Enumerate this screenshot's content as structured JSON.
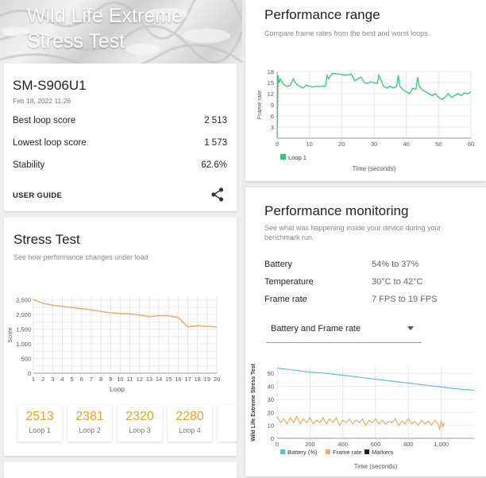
{
  "hero": {
    "title_line1": "Wild Life Extreme",
    "title_line2": "Stress Test"
  },
  "device": {
    "name": "SM-S906U1",
    "date": "Feb 18, 2022 11:26",
    "best_label": "Best loop score",
    "best_value": "2 513",
    "lowest_label": "Lowest loop score",
    "lowest_value": "1 573",
    "stability_label": "Stability",
    "stability_value": "62.6%",
    "user_guide": "USER GUIDE",
    "share_icon": "share-icon"
  },
  "stress": {
    "title": "Stress Test",
    "subtitle": "See how performance changes under load",
    "tiles": [
      {
        "value": "2513",
        "label": "Loop 1"
      },
      {
        "value": "2381",
        "label": "Loop 2"
      },
      {
        "value": "2320",
        "label": "Loop 3"
      },
      {
        "value": "2280",
        "label": "Loop 4"
      },
      {
        "value": "2",
        "label": "L"
      }
    ],
    "accent": "#f0a020"
  },
  "range": {
    "title": "Performance range",
    "subtitle": "Compare frame rates from the best and worst loops.",
    "accent": "#2ecc71"
  },
  "monitor": {
    "title": "Performance monitoring",
    "subtitle_line1": "See what was happening inside your device during your",
    "subtitle_line2": "benchmark run.",
    "battery_label": "Battery",
    "battery_value": "54% to 37%",
    "temp_label": "Temperature",
    "temp_value": "30°C to 42°C",
    "fps_label": "Frame rate",
    "fps_value": "7 FPS to 19 FPS",
    "dropdown_value": "Battery and Frame rate"
  },
  "chart_data": [
    {
      "type": "line",
      "title": "",
      "xlabel": "Loop",
      "ylabel": "Score",
      "x": [
        1,
        2,
        3,
        4,
        5,
        6,
        7,
        8,
        9,
        10,
        11,
        12,
        13,
        14,
        15,
        16,
        17,
        18,
        19,
        20
      ],
      "series": [
        {
          "name": "",
          "color": "#f5a962",
          "values": [
            2513,
            2381,
            2320,
            2280,
            2240,
            2200,
            2160,
            2110,
            2060,
            2040,
            2020,
            1990,
            1930,
            1960,
            1960,
            1900,
            1580,
            1620,
            1600,
            1573
          ]
        }
      ],
      "xlim": [
        1,
        20
      ],
      "ylim": [
        0,
        2600
      ],
      "yticks": [
        0,
        250,
        500,
        750,
        1000,
        1250,
        1500,
        1750,
        2000,
        2250,
        2500
      ],
      "yticklabels": [
        "0",
        "",
        "",
        "",
        "1,000",
        "",
        "1,500",
        "",
        "2,000",
        "",
        "2,500"
      ],
      "yticklabels_shown": [
        "0",
        "250",
        "500",
        "750",
        "1,000",
        "1,250",
        "1,500",
        "1,750",
        "2,000",
        "2,250",
        "2,500"
      ],
      "grid": true
    },
    {
      "type": "line",
      "title": "",
      "xlabel": "Time (seconds)",
      "ylabel": "Frame rate",
      "xlim": [
        0,
        60
      ],
      "ylim": [
        0,
        18
      ],
      "xticks": [
        0,
        10,
        20,
        30,
        40,
        50,
        60
      ],
      "yticks": [
        0,
        3,
        6,
        9,
        12,
        15,
        18
      ],
      "series": [
        {
          "name": "Loop 1",
          "color": "#2ecc71",
          "x": [
            0,
            0.3,
            0.6,
            1,
            2,
            3,
            4,
            5,
            6,
            7,
            8,
            9,
            10,
            11,
            12,
            13,
            14,
            15,
            15.5,
            16,
            17,
            18,
            19,
            20,
            21,
            22,
            23,
            24,
            25,
            26,
            27,
            28,
            29,
            30,
            31,
            31.5,
            32,
            33,
            34,
            35,
            36,
            37,
            37.5,
            38,
            39,
            40,
            41,
            42,
            43,
            43.5,
            44,
            45,
            46,
            47,
            48,
            49,
            50,
            51,
            52,
            53,
            54,
            55,
            56,
            57,
            58,
            59,
            60
          ],
          "values": [
            0,
            17,
            15,
            16,
            14.5,
            14,
            14.2,
            16,
            14.5,
            14,
            13.5,
            14.3,
            14,
            13.8,
            14,
            13.9,
            14,
            14.1,
            17,
            16,
            17.5,
            17.4,
            17.3,
            17.2,
            17,
            17.1,
            17.3,
            15.5,
            16,
            16.5,
            15,
            14.8,
            15.2,
            15,
            14.7,
            17,
            16,
            14,
            13.5,
            14,
            13.5,
            14,
            17,
            14,
            13,
            12.5,
            12,
            13.5,
            13.2,
            16.5,
            14,
            13,
            12.5,
            12,
            11.5,
            12,
            11,
            10.5,
            11,
            12,
            11,
            11.5,
            12,
            11.5,
            12.2,
            12,
            12.5
          ]
        }
      ],
      "legend": "bottom-left",
      "grid": true
    },
    {
      "type": "line",
      "title": "",
      "ylabel": "Wild Life Extreme Stress Test",
      "xlabel": "Time (seconds)",
      "xlim": [
        0,
        1200
      ],
      "ylim": [
        0,
        55
      ],
      "xticks": [
        0,
        200,
        400,
        600,
        800,
        1000
      ],
      "yticks": [
        0,
        10,
        20,
        30,
        40,
        50
      ],
      "series": [
        {
          "name": "Battery (%)",
          "color": "#4fc3d6",
          "x": [
            0,
            100,
            200,
            300,
            400,
            500,
            600,
            700,
            800,
            900,
            1000,
            1100,
            1200
          ],
          "values": [
            54,
            52.5,
            51,
            50,
            48.5,
            47,
            45.5,
            44,
            42.5,
            41,
            39.5,
            38,
            37
          ]
        },
        {
          "name": "Frame rate",
          "color": "#f5a962",
          "x": [
            0,
            20,
            40,
            60,
            80,
            100,
            120,
            140,
            160,
            180,
            200,
            220,
            240,
            260,
            280,
            300,
            320,
            340,
            360,
            380,
            400,
            420,
            440,
            460,
            480,
            500,
            520,
            540,
            560,
            580,
            600,
            620,
            640,
            660,
            680,
            700,
            720,
            740,
            760,
            780,
            800,
            820,
            840,
            860,
            880,
            900,
            920,
            940,
            960,
            980,
            990,
            1000,
            1010,
            1020
          ],
          "values": [
            17,
            12,
            15,
            11,
            16,
            12,
            17,
            11,
            15,
            12,
            16,
            11,
            14,
            12,
            16,
            11,
            15,
            12,
            16,
            10,
            14,
            12,
            15,
            11,
            14,
            12,
            15,
            10,
            14,
            12,
            15,
            11,
            14,
            11,
            13,
            12,
            15,
            10,
            13,
            11,
            15,
            11,
            13,
            10,
            14,
            11,
            13,
            10,
            14,
            11,
            7,
            13,
            9,
            12
          ]
        },
        {
          "name": "Markers",
          "color": "#222222",
          "x": [],
          "values": []
        }
      ],
      "legend": "bottom-left",
      "grid": true
    }
  ]
}
